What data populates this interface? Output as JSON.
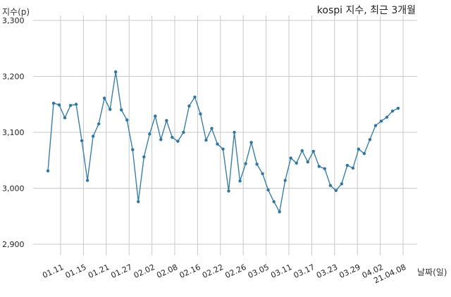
{
  "chart_data": {
    "type": "line",
    "title": "kospi 지수, 최근 3개월",
    "ylabel": "지수(p)",
    "xlabel": "날짜(일)",
    "ylim": [
      2880,
      3300
    ],
    "yticks": [
      2900,
      3000,
      3100,
      3200,
      3300
    ],
    "ytick_labels": [
      "2,900",
      "3,000",
      "3,100",
      "3,200",
      "3,300"
    ],
    "xtick_labels": [
      "01.11",
      "01.15",
      "01.21",
      "01.27",
      "02.02",
      "02.08",
      "02.16",
      "02.22",
      "02.26",
      "03.05",
      "03.11",
      "03.17",
      "03.23",
      "03.29",
      "04.02",
      "21.04.08"
    ],
    "grid": true,
    "series": [
      {
        "values": [
          3031,
          3152,
          3149,
          3126,
          3148,
          3150,
          3085,
          3014,
          3093,
          3115,
          3161,
          3141,
          3208,
          3140,
          3122,
          3069,
          2976,
          3056,
          3097,
          3129,
          3087,
          3121,
          3091,
          3084,
          3100,
          3147,
          3163,
          3133,
          3086,
          3107,
          3079,
          3070,
          2995,
          3100,
          3013,
          3044,
          3082,
          3043,
          3026,
          2997,
          2976,
          2958,
          3014,
          3054,
          3045,
          3067,
          3047,
          3066,
          3039,
          3035,
          3005,
          2996,
          3008,
          3041,
          3036,
          3070,
          3062,
          3087,
          3112,
          3120,
          3127,
          3138,
          3143
        ]
      }
    ]
  }
}
